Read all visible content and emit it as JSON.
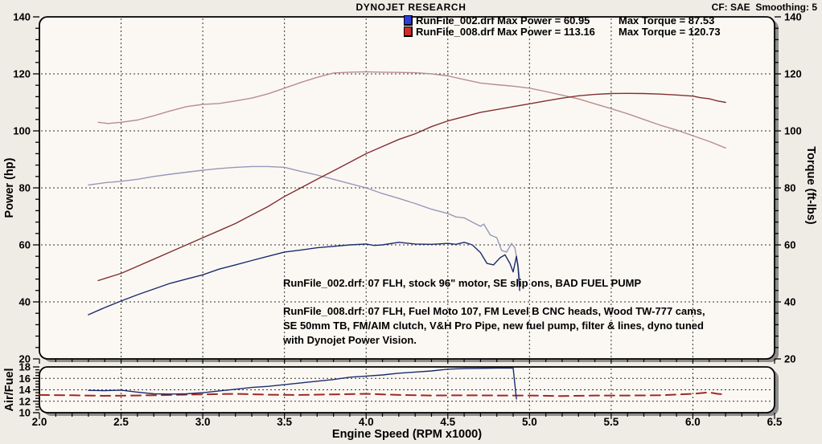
{
  "header": {
    "title": "DYNOJET RESEARCH",
    "correction_label": "CF: SAE  Smoothing: 5"
  },
  "legend": {
    "entries": [
      {
        "file_label": "RunFile_002.drf Max Power = 60.95",
        "torque_label": "Max Torque = 87.53",
        "color": "#2e3cd9"
      },
      {
        "file_label": "RunFile_008.drf Max Power = 113.16",
        "torque_label": "Max Torque = 120.73",
        "color": "#d42a2a"
      }
    ]
  },
  "annotations": {
    "line1": "RunFile_002.drf: 07 FLH, stock 96\" motor, SE slip ons, BAD FUEL PUMP",
    "block2": [
      "RunFile_008.drf: 07 FLH, Fuel Moto 107, FM Level B CNC heads, Wood TW-777 cams,",
      "SE 50mm TB, FM/AIM clutch, V&H Pro Pipe, new fuel pump, filter & lines, dyno tuned",
      "with Dynojet Power Vision."
    ]
  },
  "chart_data": {
    "type": "line",
    "title": "DYNOJET RESEARCH",
    "correction": "SAE",
    "smoothing": 5,
    "runs": [
      {
        "file": "RunFile_002.drf",
        "max_power_hp": 60.95,
        "max_torque_ftlbs": 87.53
      },
      {
        "file": "RunFile_008.drf",
        "max_power_hp": 113.16,
        "max_torque_ftlbs": 120.73
      }
    ],
    "x_axis": {
      "label": "Engine Speed (RPM x1000)",
      "min": 2.0,
      "max": 6.5,
      "major_tick": 0.5,
      "minor_tick": 0.1,
      "tick_labels": [
        "2.0",
        "2.5",
        "3.0",
        "3.5",
        "4.0",
        "4.5",
        "5.0",
        "5.5",
        "6.0",
        "6.5"
      ]
    },
    "main": {
      "y_left_label": "Power (hp)",
      "y_right_label": "Torque (ft-lbs)",
      "y_min": 20,
      "y_max": 140,
      "y_major": 20,
      "y_minor": 4,
      "y_tick_labels": [
        "140",
        "120",
        "100",
        "80",
        "60",
        "40",
        "20"
      ],
      "grid_y_values": [
        120,
        100,
        80,
        60,
        40
      ],
      "grid_x_values": [
        2.5,
        3.0,
        3.5,
        4.0,
        4.5,
        5.0,
        5.5,
        6.0
      ],
      "series": [
        {
          "name": "torque-runfile-008",
          "units": "ft-lbs",
          "color": "#b78e8e",
          "width": 1.4,
          "dash": null,
          "points": [
            [
              2.36,
              103
            ],
            [
              2.42,
              102.6
            ],
            [
              2.5,
              103
            ],
            [
              2.6,
              103.8
            ],
            [
              2.7,
              105.3
            ],
            [
              2.8,
              107
            ],
            [
              2.9,
              108.5
            ],
            [
              3.0,
              109.3
            ],
            [
              3.1,
              109.6
            ],
            [
              3.2,
              110.5
            ],
            [
              3.3,
              111.5
            ],
            [
              3.4,
              113
            ],
            [
              3.5,
              115
            ],
            [
              3.6,
              117
            ],
            [
              3.7,
              118.8
            ],
            [
              3.8,
              120.3
            ],
            [
              3.9,
              120.6
            ],
            [
              4.0,
              120.73
            ],
            [
              4.1,
              120.6
            ],
            [
              4.2,
              120.5
            ],
            [
              4.3,
              120.4
            ],
            [
              4.4,
              120
            ],
            [
              4.5,
              119.3
            ],
            [
              4.6,
              118
            ],
            [
              4.7,
              116.8
            ],
            [
              4.8,
              116.2
            ],
            [
              4.9,
              115.7
            ],
            [
              5.0,
              115
            ],
            [
              5.1,
              113.8
            ],
            [
              5.2,
              112.5
            ],
            [
              5.3,
              111.2
            ],
            [
              5.4,
              109.5
            ],
            [
              5.5,
              107.8
            ],
            [
              5.6,
              106
            ],
            [
              5.7,
              104
            ],
            [
              5.8,
              102
            ],
            [
              5.9,
              100.3
            ],
            [
              6.0,
              98.3
            ],
            [
              6.1,
              96.3
            ],
            [
              6.2,
              94
            ]
          ]
        },
        {
          "name": "torque-runfile-002",
          "units": "ft-lbs",
          "color": "#9598ba",
          "width": 1.4,
          "dash": null,
          "points": [
            [
              2.3,
              81
            ],
            [
              2.4,
              81.8
            ],
            [
              2.5,
              82.3
            ],
            [
              2.6,
              83
            ],
            [
              2.7,
              84
            ],
            [
              2.8,
              84.8
            ],
            [
              2.9,
              85.5
            ],
            [
              3.0,
              86.2
            ],
            [
              3.1,
              86.8
            ],
            [
              3.2,
              87.2
            ],
            [
              3.3,
              87.5
            ],
            [
              3.4,
              87.5
            ],
            [
              3.5,
              87.2
            ],
            [
              3.6,
              85.8
            ],
            [
              3.7,
              84.5
            ],
            [
              3.8,
              83
            ],
            [
              3.9,
              81.5
            ],
            [
              4.0,
              80
            ],
            [
              4.1,
              78
            ],
            [
              4.2,
              76.3
            ],
            [
              4.3,
              74.5
            ],
            [
              4.4,
              72.5
            ],
            [
              4.5,
              71
            ],
            [
              4.55,
              69.8
            ],
            [
              4.6,
              69.5
            ],
            [
              4.65,
              68
            ],
            [
              4.7,
              66.5
            ],
            [
              4.72,
              67.3
            ],
            [
              4.76,
              63.5
            ],
            [
              4.8,
              62.5
            ],
            [
              4.83,
              58
            ],
            [
              4.86,
              57.5
            ],
            [
              4.89,
              60.5
            ],
            [
              4.91,
              59
            ],
            [
              4.93,
              53
            ],
            [
              4.94,
              48
            ]
          ]
        },
        {
          "name": "power-runfile-008",
          "units": "hp",
          "color": "#823030",
          "width": 1.4,
          "dash": null,
          "points": [
            [
              2.36,
              47.5
            ],
            [
              2.5,
              50
            ],
            [
              2.6,
              52.5
            ],
            [
              2.7,
              55
            ],
            [
              2.8,
              57.5
            ],
            [
              2.9,
              60
            ],
            [
              3.0,
              62.5
            ],
            [
              3.1,
              65
            ],
            [
              3.2,
              67.5
            ],
            [
              3.3,
              70.5
            ],
            [
              3.4,
              73.5
            ],
            [
              3.5,
              77
            ],
            [
              3.6,
              80
            ],
            [
              3.7,
              83
            ],
            [
              3.8,
              86
            ],
            [
              3.9,
              89
            ],
            [
              4.0,
              92
            ],
            [
              4.1,
              94.5
            ],
            [
              4.2,
              97
            ],
            [
              4.3,
              99
            ],
            [
              4.4,
              101.5
            ],
            [
              4.5,
              103.5
            ],
            [
              4.6,
              105
            ],
            [
              4.7,
              106.5
            ],
            [
              4.8,
              107.5
            ],
            [
              4.9,
              108.5
            ],
            [
              5.0,
              109.5
            ],
            [
              5.1,
              110.5
            ],
            [
              5.2,
              111.5
            ],
            [
              5.3,
              112.3
            ],
            [
              5.4,
              112.8
            ],
            [
              5.5,
              113.1
            ],
            [
              5.6,
              113.16
            ],
            [
              5.7,
              113.1
            ],
            [
              5.8,
              112.9
            ],
            [
              5.9,
              112.6
            ],
            [
              6.0,
              112.2
            ],
            [
              6.05,
              111.6
            ],
            [
              6.1,
              111.3
            ],
            [
              6.15,
              110.5
            ],
            [
              6.2,
              110
            ]
          ]
        },
        {
          "name": "power-runfile-002",
          "units": "hp",
          "color": "#1c2c6e",
          "width": 1.4,
          "dash": null,
          "points": [
            [
              2.3,
              35.5
            ],
            [
              2.4,
              38
            ],
            [
              2.5,
              40.3
            ],
            [
              2.6,
              42.5
            ],
            [
              2.7,
              44.5
            ],
            [
              2.8,
              46.5
            ],
            [
              2.9,
              48
            ],
            [
              3.0,
              49.5
            ],
            [
              3.1,
              51.5
            ],
            [
              3.2,
              53
            ],
            [
              3.3,
              54.5
            ],
            [
              3.4,
              56
            ],
            [
              3.5,
              57.5
            ],
            [
              3.6,
              58.2
            ],
            [
              3.7,
              59
            ],
            [
              3.8,
              59.5
            ],
            [
              3.9,
              60
            ],
            [
              4.0,
              60.3
            ],
            [
              4.05,
              59.8
            ],
            [
              4.1,
              60
            ],
            [
              4.2,
              60.9
            ],
            [
              4.3,
              60.3
            ],
            [
              4.4,
              60.2
            ],
            [
              4.5,
              60.5
            ],
            [
              4.55,
              60.2
            ],
            [
              4.6,
              60.9
            ],
            [
              4.65,
              60
            ],
            [
              4.7,
              57.3
            ],
            [
              4.74,
              53.5
            ],
            [
              4.78,
              53
            ],
            [
              4.82,
              55.5
            ],
            [
              4.85,
              56.5
            ],
            [
              4.88,
              53.5
            ],
            [
              4.9,
              50.5
            ],
            [
              4.92,
              56
            ],
            [
              4.93,
              52
            ],
            [
              4.94,
              44
            ]
          ]
        }
      ]
    },
    "af": {
      "y_label": "Air/Fuel",
      "y_min": 10,
      "y_max": 18,
      "y_major": 2,
      "y_minor": 0.5,
      "y_tick_labels": [
        "18",
        "16",
        "14",
        "12",
        "10"
      ],
      "grid_y_values": [
        16,
        14,
        12
      ],
      "grid_x_values": [
        2.5,
        3.0,
        3.5,
        4.0,
        4.5,
        5.0,
        5.5,
        6.0
      ],
      "series": [
        {
          "name": "airfuel-runfile-008",
          "units": "AFR",
          "color": "#a02828",
          "width": 2,
          "dash": "12,7",
          "points": [
            [
              2.0,
              13.1
            ],
            [
              2.2,
              13.05
            ],
            [
              2.4,
              12.95
            ],
            [
              2.6,
              13.0
            ],
            [
              2.8,
              13.1
            ],
            [
              3.0,
              13.2
            ],
            [
              3.2,
              13.3
            ],
            [
              3.4,
              13.15
            ],
            [
              3.6,
              13.1
            ],
            [
              3.8,
              13.2
            ],
            [
              4.0,
              13.3
            ],
            [
              4.2,
              13.1
            ],
            [
              4.4,
              13.0
            ],
            [
              4.6,
              13.05
            ],
            [
              4.8,
              13.0
            ],
            [
              5.0,
              13.0
            ],
            [
              5.2,
              12.9
            ],
            [
              5.4,
              13.0
            ],
            [
              5.6,
              13.0
            ],
            [
              5.8,
              13.05
            ],
            [
              6.0,
              13.3
            ],
            [
              6.1,
              13.55
            ],
            [
              6.15,
              13.3
            ],
            [
              6.2,
              13.2
            ]
          ]
        },
        {
          "name": "airfuel-runfile-002",
          "units": "AFR",
          "color": "#1c2c6e",
          "width": 1.4,
          "dash": null,
          "points": [
            [
              2.3,
              13.9
            ],
            [
              2.4,
              13.85
            ],
            [
              2.5,
              13.95
            ],
            [
              2.6,
              13.6
            ],
            [
              2.7,
              13.3
            ],
            [
              2.8,
              13.25
            ],
            [
              2.9,
              13.3
            ],
            [
              3.0,
              13.5
            ],
            [
              3.1,
              13.8
            ],
            [
              3.2,
              14.1
            ],
            [
              3.3,
              14.4
            ],
            [
              3.4,
              14.6
            ],
            [
              3.5,
              14.9
            ],
            [
              3.6,
              15.2
            ],
            [
              3.7,
              15.5
            ],
            [
              3.8,
              15.8
            ],
            [
              3.9,
              16.2
            ],
            [
              4.0,
              16.4
            ],
            [
              4.1,
              16.6
            ],
            [
              4.2,
              16.9
            ],
            [
              4.3,
              17.1
            ],
            [
              4.4,
              17.3
            ],
            [
              4.5,
              17.6
            ],
            [
              4.6,
              17.7
            ],
            [
              4.7,
              17.75
            ],
            [
              4.8,
              17.8
            ],
            [
              4.88,
              17.8
            ],
            [
              4.9,
              17.8
            ],
            [
              4.92,
              12.4
            ]
          ]
        }
      ]
    },
    "layout": {
      "grid": "dashed",
      "legend_position": "top-center-inside",
      "frame_fill": "#fbf8f3",
      "page_fill": "#efebe5",
      "shadow_color": "#8d8d8d"
    }
  }
}
